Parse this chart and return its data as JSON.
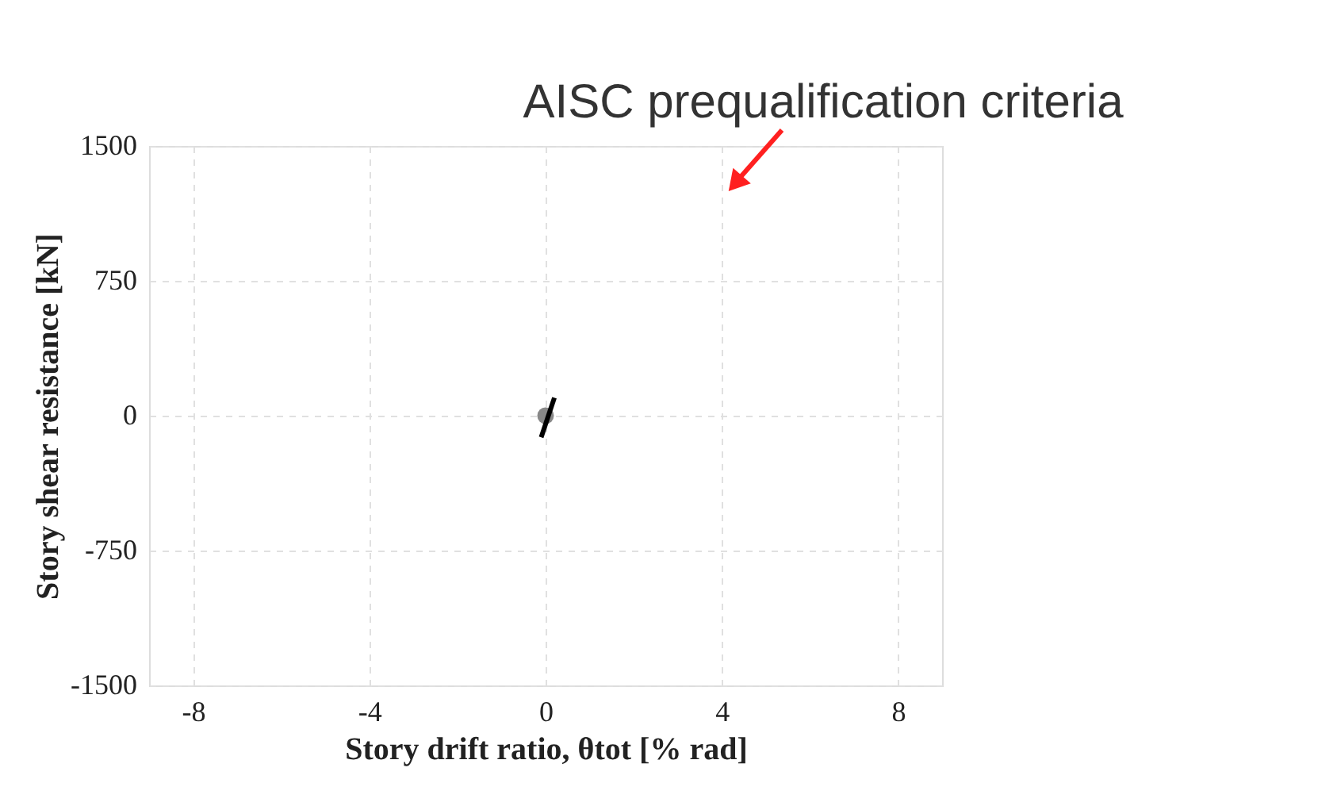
{
  "chart_data": {
    "type": "line",
    "xlabel": "Story drift ratio, θtot [% rad]",
    "ylabel": "Story shear resistance [kN]",
    "xlim": [
      -9,
      9
    ],
    "xticks": [
      -8,
      -4,
      0,
      4,
      8
    ],
    "ylim": [
      -1500,
      1500
    ],
    "yticks": [
      -1500,
      -750,
      0,
      750,
      1500
    ],
    "grid": true,
    "series": [
      {
        "type": "scatter",
        "color": "#888888",
        "x": [
          0
        ],
        "values": [
          0
        ],
        "marker": "circle"
      },
      {
        "color": "#000000",
        "x": [
          -0.1,
          0.2
        ],
        "values": [
          -120,
          100
        ]
      }
    ],
    "annotations": [
      "AISC prequalification criteria"
    ]
  }
}
